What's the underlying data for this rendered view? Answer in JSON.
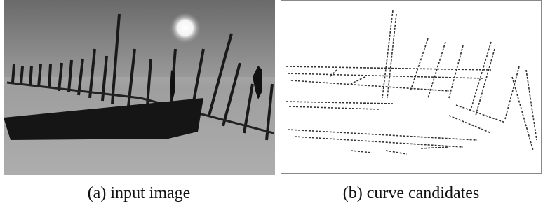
{
  "figure": {
    "panels": [
      {
        "caption": "(a) input image"
      },
      {
        "caption": "(b) curve candidates"
      }
    ]
  }
}
